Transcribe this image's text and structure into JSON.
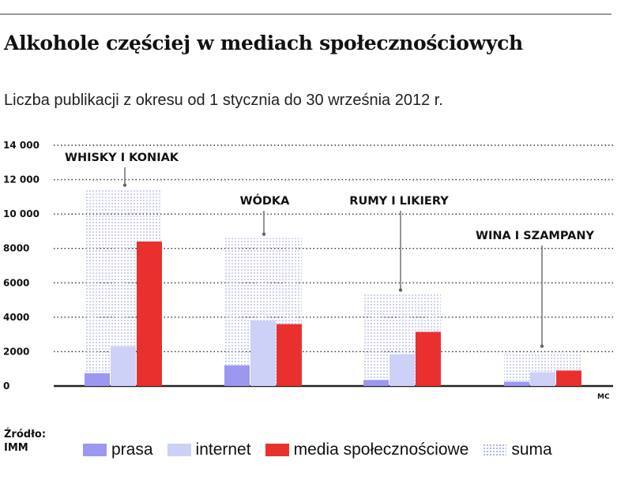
{
  "header": {
    "title": "Alkohole częściej w mediach społecznościowych",
    "subtitle": "Liczba publikacji z okresu od 1 stycznia do 30 września 2012 r."
  },
  "chart_data": {
    "type": "bar",
    "title": "Alkohole częściej w mediach społecznościowych",
    "subtitle": "Liczba publikacji z okresu od 1 stycznia do 30 września 2012 r.",
    "categories": [
      "WHISKY I KONIAK",
      "WÓDKA",
      "RUMY I LIKIERY",
      "WINA I SZAMPANY"
    ],
    "series": [
      {
        "name": "prasa",
        "values": [
          750,
          1200,
          350,
          250
        ],
        "color": "#9c98ef"
      },
      {
        "name": "internet",
        "values": [
          2300,
          3800,
          1850,
          800
        ],
        "color": "#cdd0f7"
      },
      {
        "name": "media społecznościowe",
        "values": [
          8400,
          3600,
          3150,
          900
        ],
        "color": "#e8312e"
      }
    ],
    "totals": {
      "name": "suma",
      "values": [
        11450,
        8600,
        5350,
        1950
      ],
      "color": "#a9b0ea"
    },
    "yticks": [
      "14 000",
      "12 000",
      "10 000",
      "8000",
      "6000",
      "4000",
      "2000",
      "0"
    ],
    "ylim": [
      0,
      14000
    ],
    "grid": true,
    "legend": "bottom",
    "credit": "MC"
  },
  "source": {
    "label": "Źródło:",
    "value": "IMM"
  }
}
